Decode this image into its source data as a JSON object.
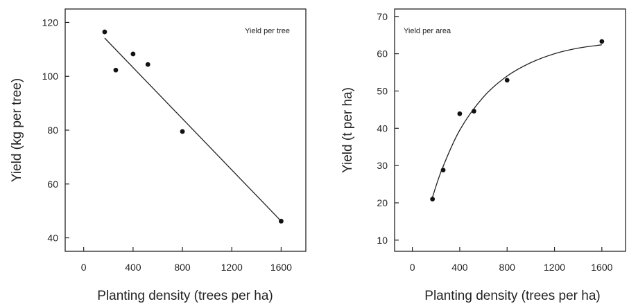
{
  "chart_data": [
    {
      "type": "scatter",
      "annotation": "Yield per tree",
      "xlabel": "Planting density (trees per ha)",
      "ylabel": "Yield (kg per tree)",
      "xlim": [
        -150,
        1800
      ],
      "ylim": [
        35,
        125
      ],
      "xticks": [
        0,
        400,
        800,
        1200,
        1600
      ],
      "yticks": [
        40,
        60,
        80,
        100,
        120
      ],
      "grid": false,
      "points": [
        {
          "x": 170,
          "y": 116.5
        },
        {
          "x": 260,
          "y": 102.3
        },
        {
          "x": 400,
          "y": 108.3
        },
        {
          "x": 520,
          "y": 104.4
        },
        {
          "x": 800,
          "y": 79.5
        },
        {
          "x": 1600,
          "y": 46.2
        }
      ],
      "fit": {
        "kind": "linear",
        "x": [
          170,
          1600
        ],
        "y": [
          114.2,
          46.2
        ]
      }
    },
    {
      "type": "scatter",
      "annotation": "Yield per area",
      "xlabel": "Planting density (trees per ha)",
      "ylabel": "Yield (t per ha)",
      "xlim": [
        -150,
        1800
      ],
      "ylim": [
        7,
        72
      ],
      "xticks": [
        0,
        400,
        800,
        1200,
        1600
      ],
      "yticks": [
        10,
        20,
        30,
        40,
        50,
        60,
        70
      ],
      "grid": false,
      "points": [
        {
          "x": 170,
          "y": 21.0
        },
        {
          "x": 260,
          "y": 28.8
        },
        {
          "x": 400,
          "y": 43.9
        },
        {
          "x": 520,
          "y": 44.6
        },
        {
          "x": 800,
          "y": 52.9
        },
        {
          "x": 1600,
          "y": 63.3
        }
      ],
      "fit": {
        "kind": "curve",
        "x": [
          170,
          250,
          400,
          600,
          800,
          1000,
          1200,
          1400,
          1600
        ],
        "y": [
          21.5,
          29.0,
          39.5,
          48.4,
          54.0,
          57.6,
          60.0,
          61.5,
          62.4
        ]
      }
    }
  ]
}
